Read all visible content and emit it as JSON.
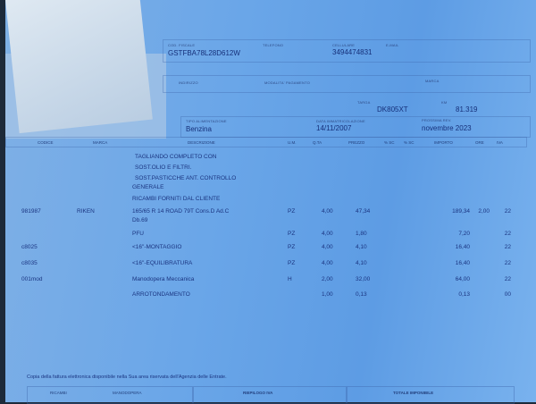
{
  "customer": {
    "fiscal_code_label": "COD. FISCALE",
    "fiscal_code": "GSTFBA78L28D612W",
    "phone_label": "TELEFONO",
    "mobile_label": "CELLULARE",
    "mobile": "3494474831",
    "email_label": "E-MAIL",
    "address_label": "INDIRIZZO",
    "payment_label": "MODALITA' PAGAMENTO",
    "brand_label": "MARCA"
  },
  "vehicle": {
    "plate_label": "TARGA",
    "plate": "DK805XT",
    "km_label": "KM",
    "km": "81.319",
    "fuel_label": "TIPO ALIMENTAZIONE",
    "fuel": "Benzina",
    "reg_date_label": "DATA IMMATRICOLAZIONE",
    "reg_date": "14/11/2007",
    "revision_label": "PROSSIMA REV.",
    "revision": "novembre 2023"
  },
  "table": {
    "headers": {
      "code": "CODICE",
      "brand": "MARCA",
      "desc": "DESCRIZIONE",
      "um": "U.M.",
      "qty": "Q.TA",
      "price": "PREZZO",
      "sc1": "% SC",
      "sc2": "% SC",
      "amount": "IMPORTO",
      "hours": "ORE",
      "vat": "IVA"
    },
    "notes": [
      "TAGLIANDO COMPLETO CON",
      "SOST.OLIO E FILTRI.",
      "SOST.PASTICCHE ANT. CONTROLLO",
      "GENERALE",
      "RICAMBI FORNITI DAL CLIENTE"
    ],
    "rows": [
      {
        "code": "981987",
        "brand": "RIKEN",
        "desc": "165/65 R 14 ROAD 79T Cons.D Ad.C",
        "desc2": "Db.69",
        "um": "PZ",
        "qty": "4,00",
        "price": "47,34",
        "amount": "189,34",
        "hours": "2,00",
        "vat": "22"
      },
      {
        "code": "",
        "brand": "",
        "desc": "PFU",
        "desc2": "",
        "um": "PZ",
        "qty": "4,00",
        "price": "1,80",
        "amount": "7,20",
        "hours": "",
        "vat": "22"
      },
      {
        "code": "c8025",
        "brand": "",
        "desc": "<16\"-MONTAGGIO",
        "desc2": "",
        "um": "PZ",
        "qty": "4,00",
        "price": "4,10",
        "amount": "16,40",
        "hours": "",
        "vat": "22"
      },
      {
        "code": "c8035",
        "brand": "",
        "desc": "<16\"-EQUILIBRATURA",
        "desc2": "",
        "um": "PZ",
        "qty": "4,00",
        "price": "4,10",
        "amount": "16,40",
        "hours": "",
        "vat": "22"
      },
      {
        "code": "001mod",
        "brand": "",
        "desc": "Manodopera Meccanica",
        "desc2": "",
        "um": "H",
        "qty": "2,00",
        "price": "32,00",
        "amount": "64,00",
        "hours": "",
        "vat": "22"
      },
      {
        "code": "",
        "brand": "",
        "desc": "ARROTONDAMENTO",
        "desc2": "",
        "um": "",
        "qty": "1,00",
        "price": "0,13",
        "amount": "0,13",
        "hours": "",
        "vat": "00"
      }
    ]
  },
  "footer": {
    "note": "Copia della fattura elettronica disponibile nella Sua area riservata dell'Agenzia delle Entrate.",
    "parts": "RICAMBI",
    "labour": "MANODOPERA",
    "vat_summary": "RIEPILOGO IVA",
    "total": "TOTALE IMPONIBILE"
  }
}
